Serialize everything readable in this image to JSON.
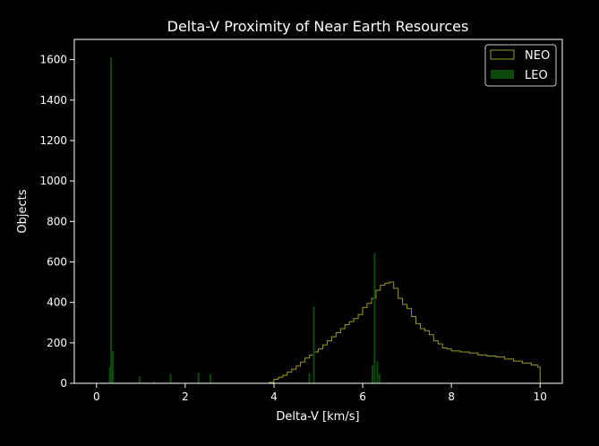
{
  "chart_data": {
    "type": "histogram",
    "title": "Delta-V Proximity of Near Earth Resources",
    "xlabel": "Delta-V [km/s]",
    "ylabel": "Objects",
    "xlim": [
      -0.5,
      10.5
    ],
    "ylim": [
      0,
      1700
    ],
    "xticks": [
      "0",
      "2",
      "4",
      "6",
      "8",
      "10"
    ],
    "yticks": [
      "0",
      "200",
      "400",
      "600",
      "800",
      "1000",
      "1200",
      "1400",
      "1600"
    ],
    "legend_position": "upper right",
    "legend": [
      {
        "label": "NEO",
        "style": "step-outline",
        "color": "#9a9a1e"
      },
      {
        "label": "LEO",
        "style": "filled",
        "color": "#0b4a0b"
      }
    ],
    "colors": {
      "background": "#000000",
      "neo": "#9a9a1e",
      "leo": "#0b4a0b",
      "text": "#ffffff"
    },
    "series": [
      {
        "name": "NEO",
        "style": "step",
        "points": [
          [
            3.8,
            0
          ],
          [
            3.9,
            5
          ],
          [
            4.0,
            20
          ],
          [
            4.1,
            30
          ],
          [
            4.2,
            40
          ],
          [
            4.3,
            55
          ],
          [
            4.4,
            70
          ],
          [
            4.5,
            85
          ],
          [
            4.6,
            105
          ],
          [
            4.7,
            125
          ],
          [
            4.8,
            140
          ],
          [
            4.9,
            155
          ],
          [
            5.0,
            170
          ],
          [
            5.1,
            190
          ],
          [
            5.2,
            210
          ],
          [
            5.3,
            230
          ],
          [
            5.4,
            250
          ],
          [
            5.5,
            270
          ],
          [
            5.6,
            290
          ],
          [
            5.7,
            305
          ],
          [
            5.8,
            320
          ],
          [
            5.9,
            340
          ],
          [
            6.0,
            375
          ],
          [
            6.1,
            395
          ],
          [
            6.2,
            420
          ],
          [
            6.3,
            460
          ],
          [
            6.4,
            485
          ],
          [
            6.5,
            495
          ],
          [
            6.6,
            500
          ],
          [
            6.7,
            470
          ],
          [
            6.8,
            420
          ],
          [
            6.9,
            390
          ],
          [
            7.0,
            370
          ],
          [
            7.1,
            330
          ],
          [
            7.2,
            295
          ],
          [
            7.3,
            270
          ],
          [
            7.4,
            260
          ],
          [
            7.5,
            240
          ],
          [
            7.6,
            210
          ],
          [
            7.7,
            195
          ],
          [
            7.8,
            175
          ],
          [
            7.9,
            170
          ],
          [
            8.0,
            160
          ],
          [
            8.2,
            155
          ],
          [
            8.4,
            150
          ],
          [
            8.6,
            140
          ],
          [
            8.8,
            135
          ],
          [
            9.0,
            130
          ],
          [
            9.2,
            120
          ],
          [
            9.4,
            110
          ],
          [
            9.6,
            100
          ],
          [
            9.8,
            90
          ],
          [
            9.95,
            80
          ],
          [
            10.0,
            70
          ]
        ]
      },
      {
        "name": "LEO",
        "style": "bars",
        "bars": [
          [
            0.3,
            80
          ],
          [
            0.33,
            1610
          ],
          [
            0.37,
            160
          ],
          [
            0.97,
            35
          ],
          [
            1.3,
            10
          ],
          [
            1.67,
            45
          ],
          [
            2.3,
            55
          ],
          [
            2.57,
            45
          ],
          [
            4.8,
            50
          ],
          [
            4.9,
            380
          ],
          [
            6.22,
            90
          ],
          [
            6.27,
            645
          ],
          [
            6.33,
            110
          ],
          [
            6.38,
            45
          ]
        ]
      }
    ]
  }
}
